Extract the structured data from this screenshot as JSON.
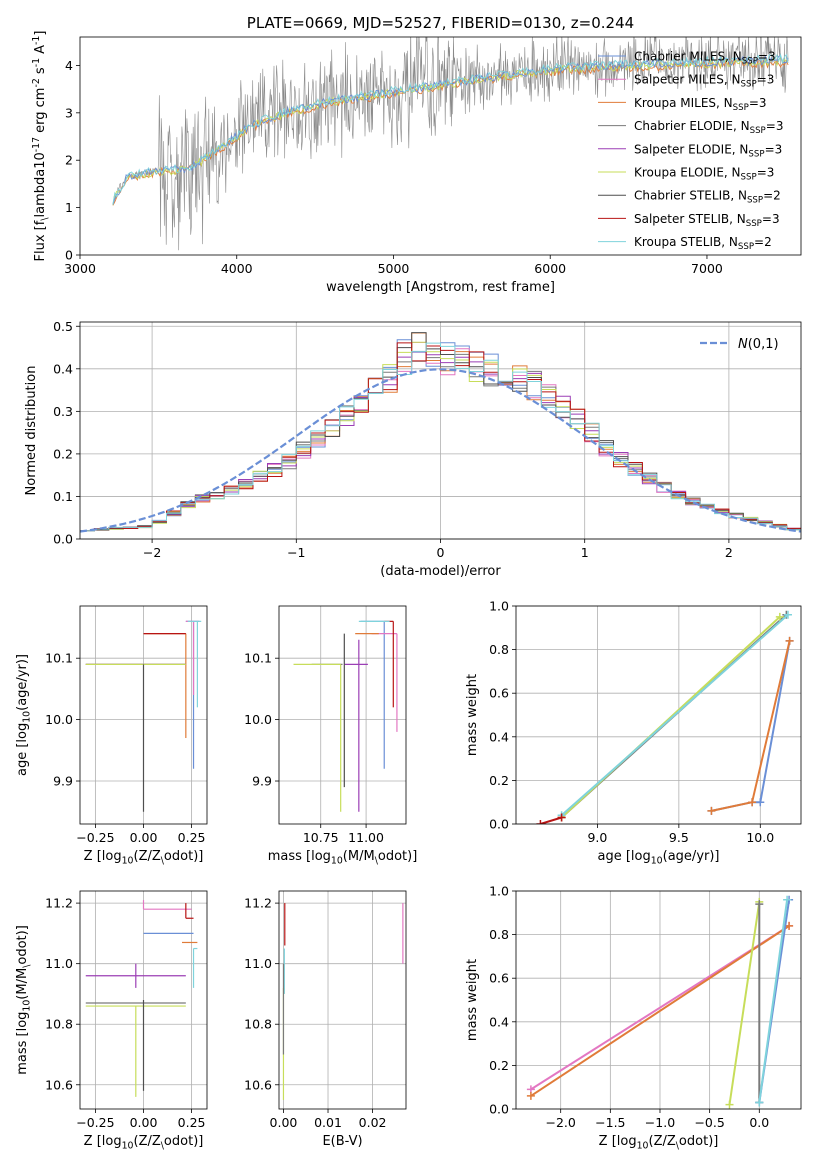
{
  "series_colors": {
    "chabrier_miles": "#6a8fd6",
    "salpeter_miles": "#e377c2",
    "kroupa_miles": "#e07b39",
    "chabrier_elodie": "#7a7a7a",
    "salpeter_elodie": "#9b3fb5",
    "kroupa_elodie": "#c7dd5a",
    "chabrier_stelib": "#4f4f4f",
    "salpeter_stelib": "#b81414",
    "kroupa_stelib": "#7fd3dc"
  },
  "chart_data": [
    {
      "id": "spectrum",
      "type": "line",
      "title": "PLATE=0669, MJD=52527, FIBERID=0130, z=0.244",
      "xlabel": "wavelength [Angstrom, rest frame]",
      "ylabel": "Flux [f$_\\lambda$10$^{-17}$ erg cm$^{-2}$ s$^{-1}$ A$^{-1}$]",
      "xlim": [
        3000,
        7600
      ],
      "ylim": [
        0,
        4.6
      ],
      "xticks": [
        3000,
        4000,
        5000,
        6000,
        7000
      ],
      "yticks": [
        0,
        1,
        2,
        3,
        4
      ],
      "grid": false,
      "legend_position": "right",
      "legend": [
        {
          "name": "Chabrier MILES, N$_{SSP}$=3",
          "color_key": "chabrier_miles"
        },
        {
          "name": "Salpeter MILES, N$_{SSP}$=3",
          "color_key": "salpeter_miles"
        },
        {
          "name": "Kroupa MILES, N$_{SSP}$=3",
          "color_key": "kroupa_miles"
        },
        {
          "name": "Chabrier ELODIE, N$_{SSP}$=3",
          "color_key": "chabrier_elodie"
        },
        {
          "name": "Salpeter ELODIE, N$_{SSP}$=3",
          "color_key": "salpeter_elodie"
        },
        {
          "name": "Kroupa ELODIE, N$_{SSP}$=3",
          "color_key": "kroupa_elodie"
        },
        {
          "name": "Chabrier STELIB, N$_{SSP}$=2",
          "color_key": "chabrier_stelib"
        },
        {
          "name": "Salpeter STELIB, N$_{SSP}$=3",
          "color_key": "salpeter_stelib"
        },
        {
          "name": "Kroupa STELIB, N$_{SSP}$=2",
          "color_key": "kroupa_stelib"
        }
      ],
      "data_continuum": {
        "x": [
          3210,
          3300,
          3450,
          3600,
          3700,
          3800,
          3950,
          4100,
          4300,
          4600,
          4900,
          5200,
          5500,
          5800,
          6100,
          6400,
          6800,
          7200,
          7500
        ],
        "y": [
          1.15,
          1.65,
          1.75,
          1.8,
          1.85,
          2.05,
          2.4,
          2.75,
          3.0,
          3.25,
          3.4,
          3.55,
          3.7,
          3.85,
          3.95,
          4.0,
          4.05,
          4.1,
          4.12
        ]
      }
    },
    {
      "id": "residuals",
      "type": "line",
      "xlabel": "(data-model)/error",
      "ylabel": "Normed distribution",
      "xlim": [
        -2.5,
        2.5
      ],
      "ylim": [
        0,
        0.51
      ],
      "xticks": [
        -2,
        -1,
        0,
        1,
        2
      ],
      "yticks": [
        0.0,
        0.1,
        0.2,
        0.3,
        0.4,
        0.5
      ],
      "grid": true,
      "legend_position": "upper right",
      "legend": [
        {
          "name": "$\\mathcal{N}(0,1)$",
          "color_key": "chabrier_miles",
          "style": "dashed"
        }
      ],
      "bin_width": 0.1,
      "histogram_envelope": {
        "x": [
          -2.5,
          -2.0,
          -1.7,
          -1.4,
          -1.1,
          -0.7,
          -0.4,
          -0.2,
          0.0,
          0.3,
          0.6,
          0.9,
          1.2,
          1.5,
          1.8,
          2.1,
          2.5
        ],
        "y": [
          0.02,
          0.03,
          0.09,
          0.12,
          0.17,
          0.27,
          0.36,
          0.45,
          0.43,
          0.4,
          0.37,
          0.3,
          0.2,
          0.13,
          0.08,
          0.05,
          0.02
        ]
      }
    },
    {
      "id": "age_vs_z",
      "type": "scatter",
      "xlabel": "Z [log$_{10}$($Z$/$Z_\\odot$)]",
      "ylabel": "age  [log$_{10}$($age$/$yr$)]",
      "xlim": [
        -0.33,
        0.33
      ],
      "ylim": [
        9.83,
        10.185
      ],
      "xticks": [
        -0.25,
        0.0,
        0.25
      ],
      "xtick_labels": [
        "−0.25",
        "0.00",
        "0.25"
      ],
      "yticks": [
        9.9,
        10.0,
        10.1
      ],
      "yticks_labels": [
        "9.9",
        "10.0",
        "10.1"
      ],
      "grid": true,
      "points": [
        {
          "color_key": "chabrier_miles",
          "x": 0.26,
          "xerr": [
            0.04,
            0.03
          ],
          "y": 10.16,
          "yerr": [
            0.24,
            0.0
          ]
        },
        {
          "color_key": "salpeter_miles",
          "x": 0.26,
          "xerr": [
            0.04,
            0.03
          ],
          "y": 10.16,
          "yerr": [
            0.12,
            0.0
          ]
        },
        {
          "color_key": "kroupa_miles",
          "x": 0.22,
          "xerr": [
            0.22,
            0.0
          ],
          "y": 10.14,
          "yerr": [
            0.17,
            0.0
          ]
        },
        {
          "color_key": "chabrier_elodie",
          "x": -0.04,
          "xerr": [
            0.26,
            0.26
          ],
          "y": 10.09,
          "yerr": [
            0.0,
            0.0
          ]
        },
        {
          "color_key": "salpeter_elodie",
          "x": -0.04,
          "xerr": [
            0.26,
            0.26
          ],
          "y": 10.09,
          "yerr": [
            0.0,
            0.0
          ]
        },
        {
          "color_key": "kroupa_elodie",
          "x": -0.04,
          "xerr": [
            0.26,
            0.26
          ],
          "y": 10.09,
          "yerr": [
            0.0,
            0.0
          ]
        },
        {
          "color_key": "chabrier_stelib",
          "x": 0.0,
          "xerr": [
            0.0,
            0.0
          ],
          "y": 10.09,
          "yerr": [
            0.24,
            0.0
          ]
        },
        {
          "color_key": "salpeter_stelib",
          "x": 0.22,
          "xerr": [
            0.22,
            0.0
          ],
          "y": 10.14,
          "yerr": [
            0.0,
            0.0
          ]
        },
        {
          "color_key": "kroupa_stelib",
          "x": 0.28,
          "xerr": [
            0.05,
            0.02
          ],
          "y": 10.16,
          "yerr": [
            0.14,
            0.0
          ]
        }
      ]
    },
    {
      "id": "age_vs_mass",
      "type": "scatter",
      "xlabel": "mass [log$_{10}$($M$/$M_\\odot$)]",
      "xlim": [
        10.52,
        11.22
      ],
      "ylim": [
        9.83,
        10.185
      ],
      "xticks": [
        10.75,
        11.0
      ],
      "xtick_labels": [
        "10.75",
        "11.00"
      ],
      "yticks": [
        9.9,
        10.0,
        10.1
      ],
      "yticks_labels": [
        "9.9",
        "10.0",
        "10.1"
      ],
      "grid": true,
      "points": [
        {
          "color_key": "chabrier_miles",
          "x": 11.1,
          "xerr": [
            0.13,
            0.0
          ],
          "y": 10.16,
          "yerr": [
            0.24,
            0.0
          ]
        },
        {
          "color_key": "salpeter_miles",
          "x": 11.17,
          "xerr": [
            0.14,
            0.0
          ],
          "y": 10.14,
          "yerr": [
            0.16,
            0.0
          ]
        },
        {
          "color_key": "kroupa_miles",
          "x": 11.07,
          "xerr": [
            0.13,
            0.0
          ],
          "y": 10.14,
          "yerr": [
            0.0,
            0.0
          ]
        },
        {
          "color_key": "chabrier_elodie",
          "x": 10.87,
          "xerr": [
            0.17,
            0.0
          ],
          "y": 10.09,
          "yerr": [
            0.0,
            0.0
          ]
        },
        {
          "color_key": "salpeter_elodie",
          "x": 10.96,
          "xerr": [
            0.08,
            0.05
          ],
          "y": 10.09,
          "yerr": [
            0.24,
            0.04
          ]
        },
        {
          "color_key": "kroupa_elodie",
          "x": 10.86,
          "xerr": [
            0.26,
            0.0
          ],
          "y": 10.09,
          "yerr": [
            0.24,
            0.0
          ]
        },
        {
          "color_key": "chabrier_stelib",
          "x": 10.88,
          "xerr": [
            0.0,
            0.0
          ],
          "y": 10.14,
          "yerr": [
            0.25,
            0.0
          ]
        },
        {
          "color_key": "salpeter_stelib",
          "x": 11.15,
          "xerr": [
            0.05,
            0.0
          ],
          "y": 10.16,
          "yerr": [
            0.14,
            0.0
          ]
        },
        {
          "color_key": "kroupa_stelib",
          "x": 11.13,
          "xerr": [
            0.17,
            0.0
          ],
          "y": 10.16,
          "yerr": [
            0.0,
            0.0
          ]
        }
      ]
    },
    {
      "id": "weight_vs_age",
      "type": "line",
      "xlabel": "age  [log$_{10}$($age$/$yr$)]",
      "ylabel": "mass weight",
      "xlim": [
        8.5,
        10.25
      ],
      "ylim": [
        0,
        1.0
      ],
      "xticks": [
        9.0,
        9.5,
        10.0
      ],
      "xtick_labels": [
        "9.0",
        "9.5",
        "10.0"
      ],
      "yticks": [
        0.0,
        0.2,
        0.4,
        0.6,
        0.8,
        1.0
      ],
      "yticks_labels": [
        "0.0",
        "0.2",
        "0.4",
        "0.6",
        "0.8",
        "1.0"
      ],
      "grid": true,
      "series": [
        {
          "color_key": "chabrier_miles",
          "x": [
            9.7,
            9.95,
            10.0,
            10.18
          ],
          "y": [
            0.06,
            0.1,
            0.1,
            0.84
          ]
        },
        {
          "color_key": "kroupa_miles",
          "x": [
            9.7,
            9.95,
            10.18
          ],
          "y": [
            0.06,
            0.1,
            0.84
          ]
        },
        {
          "color_key": "chabrier_elodie",
          "x": [
            8.78,
            10.16
          ],
          "y": [
            0.03,
            0.96
          ]
        },
        {
          "color_key": "kroupa_elodie",
          "x": [
            8.78,
            10.12
          ],
          "y": [
            0.03,
            0.95
          ]
        },
        {
          "color_key": "kroupa_stelib",
          "x": [
            8.78,
            10.17
          ],
          "y": [
            0.04,
            0.96
          ]
        },
        {
          "color_key": "salpeter_stelib",
          "x": [
            8.65,
            8.78
          ],
          "y": [
            0.0,
            0.03
          ]
        }
      ]
    },
    {
      "id": "mass_vs_z",
      "type": "scatter",
      "xlabel": "Z [log$_{10}$($Z$/$Z_\\odot$)]",
      "ylabel": "mass [log$_{10}$($M$/$M_\\odot$)]",
      "xlim": [
        -0.33,
        0.33
      ],
      "ylim": [
        10.52,
        11.24
      ],
      "xticks": [
        -0.25,
        0.0,
        0.25
      ],
      "xtick_labels": [
        "−0.25",
        "0.00",
        "0.25"
      ],
      "yticks": [
        10.6,
        10.8,
        11.0,
        11.2
      ],
      "yticks_labels": [
        "10.6",
        "10.8",
        "11.0",
        "11.2"
      ],
      "grid": true,
      "points": [
        {
          "color_key": "chabrier_miles",
          "x": 0.0,
          "xerr": [
            0.0,
            0.26
          ],
          "y": 11.1,
          "yerr": [
            0.0,
            0.0
          ]
        },
        {
          "color_key": "salpeter_miles",
          "x": 0.0,
          "xerr": [
            0.0,
            0.25
          ],
          "y": 11.18,
          "yerr": [
            0.0,
            0.03
          ]
        },
        {
          "color_key": "kroupa_miles",
          "x": 0.2,
          "xerr": [
            0.0,
            0.08
          ],
          "y": 11.07,
          "yerr": [
            0.0,
            0.0
          ]
        },
        {
          "color_key": "chabrier_elodie",
          "x": -0.04,
          "xerr": [
            0.26,
            0.26
          ],
          "y": 10.87,
          "yerr": [
            0.0,
            0.0
          ]
        },
        {
          "color_key": "salpeter_elodie",
          "x": -0.04,
          "xerr": [
            0.26,
            0.26
          ],
          "y": 10.96,
          "yerr": [
            0.04,
            0.04
          ]
        },
        {
          "color_key": "kroupa_elodie",
          "x": -0.04,
          "xerr": [
            0.26,
            0.26
          ],
          "y": 10.86,
          "yerr": [
            0.3,
            0.0
          ]
        },
        {
          "color_key": "chabrier_stelib",
          "x": 0.0,
          "xerr": [
            0.0,
            0.0
          ],
          "y": 10.88,
          "yerr": [
            0.3,
            0.0
          ]
        },
        {
          "color_key": "salpeter_stelib",
          "x": 0.22,
          "xerr": [
            0.0,
            0.04
          ],
          "y": 11.15,
          "yerr": [
            0.0,
            0.05
          ]
        },
        {
          "color_key": "kroupa_stelib",
          "x": 0.26,
          "xerr": [
            0.0,
            0.02
          ],
          "y": 11.05,
          "yerr": [
            0.13,
            0.0
          ]
        }
      ]
    },
    {
      "id": "mass_vs_ebv",
      "type": "scatter",
      "xlabel": "E(B-V)",
      "xlim": [
        -0.001,
        0.0275
      ],
      "ylim": [
        10.52,
        11.24
      ],
      "xticks": [
        0.0,
        0.01,
        0.02
      ],
      "xtick_labels": [
        "0.00",
        "0.01",
        "0.02"
      ],
      "yticks": [
        10.6,
        10.8,
        11.0,
        11.2
      ],
      "yticks_labels": [
        "10.6",
        "10.8",
        "11.0",
        "11.2"
      ],
      "grid": true,
      "points": [
        {
          "color_key": "salpeter_miles",
          "x": 0.0268,
          "xerr": [
            0.0,
            0.0
          ],
          "y": 11.1,
          "yerr": [
            0.1,
            0.1
          ]
        },
        {
          "color_key": "salpeter_stelib",
          "x": 0.0003,
          "xerr": [
            0.0,
            0.0
          ],
          "y": 11.1,
          "yerr": [
            0.04,
            0.1
          ]
        },
        {
          "color_key": "kroupa_stelib",
          "x": 0.0002,
          "xerr": [
            0.0,
            0.0
          ],
          "y": 10.95,
          "yerr": [
            0.05,
            0.1
          ]
        },
        {
          "color_key": "kroupa_elodie",
          "x": 0.0,
          "xerr": [
            0.0,
            0.0
          ],
          "y": 10.8,
          "yerr": [
            0.25,
            0.12
          ]
        },
        {
          "color_key": "chabrier_elodie",
          "x": 0.0,
          "xerr": [
            0.0,
            0.0
          ],
          "y": 10.9,
          "yerr": [
            0.2,
            0.1
          ]
        }
      ]
    },
    {
      "id": "weight_vs_z",
      "type": "line",
      "xlabel": "Z [log$_{10}$($Z$/$Z_\\odot$)]",
      "ylabel": "mass weight",
      "xlim": [
        -2.45,
        0.42
      ],
      "ylim": [
        0,
        1.0
      ],
      "xticks": [
        -2.0,
        -1.5,
        -1.0,
        -0.5,
        0.0
      ],
      "xtick_labels": [
        "−2.0",
        "−1.5",
        "−1.0",
        "−0.5",
        "0.0"
      ],
      "yticks": [
        0.0,
        0.2,
        0.4,
        0.6,
        0.8,
        1.0
      ],
      "yticks_labels": [
        "0.0",
        "0.2",
        "0.4",
        "0.6",
        "0.8",
        "1.0"
      ],
      "grid": true,
      "series": [
        {
          "color_key": "salpeter_miles",
          "x": [
            -2.3,
            0.3
          ],
          "y": [
            0.09,
            0.84
          ]
        },
        {
          "color_key": "kroupa_miles",
          "x": [
            -2.3,
            0.3
          ],
          "y": [
            0.06,
            0.84
          ]
        },
        {
          "color_key": "kroupa_elodie",
          "x": [
            -0.3,
            0.0
          ],
          "y": [
            0.02,
            0.95
          ]
        },
        {
          "color_key": "chabrier_elodie",
          "x": [
            0.0,
            0.0
          ],
          "y": [
            0.03,
            0.94
          ]
        },
        {
          "color_key": "chabrier_miles",
          "x": [
            0.0,
            0.3
          ],
          "y": [
            0.03,
            0.96
          ]
        },
        {
          "color_key": "kroupa_stelib",
          "x": [
            0.0,
            0.28
          ],
          "y": [
            0.03,
            0.96
          ]
        }
      ]
    }
  ]
}
